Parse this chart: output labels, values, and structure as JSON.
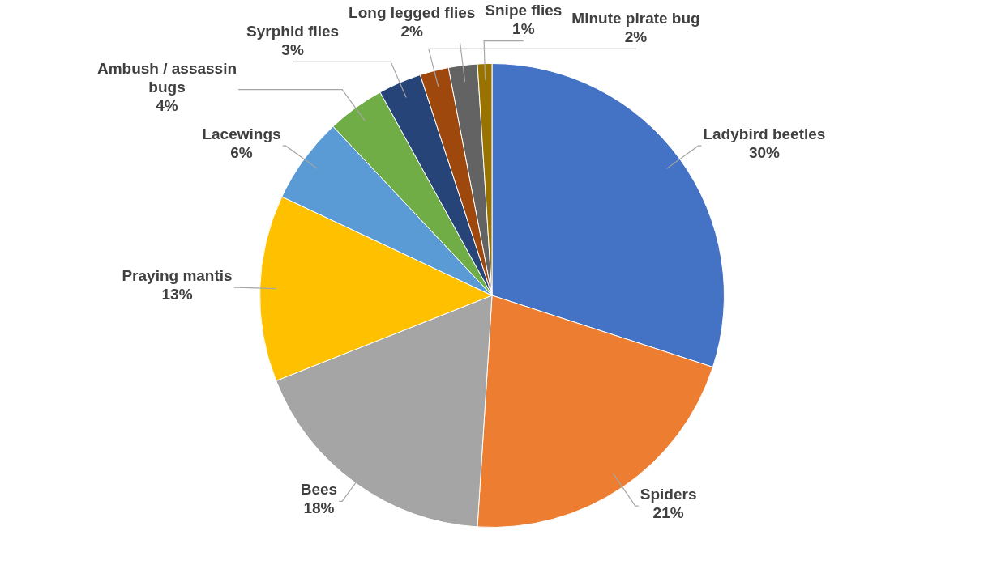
{
  "chart_data": {
    "type": "pie",
    "categories": [
      "Ladybird beetles",
      "Spiders",
      "Bees",
      "Praying mantis",
      "Lacewings",
      "Ambush / assassin bugs",
      "Syrphid flies",
      "Minute pirate bug",
      "Long legged flies",
      "Snipe flies"
    ],
    "values": [
      30,
      21,
      18,
      13,
      6,
      4,
      3,
      2,
      2,
      1
    ],
    "value_labels": [
      "30%",
      "21%",
      "18%",
      "13%",
      "6%",
      "4%",
      "3%",
      "2%",
      "2%",
      "1%"
    ],
    "colors": [
      "#4472c4",
      "#ed7d31",
      "#a5a5a5",
      "#ffc000",
      "#5b9bd5",
      "#70ad47",
      "#264478",
      "#9e480e",
      "#636363",
      "#997300"
    ],
    "legend": false
  }
}
